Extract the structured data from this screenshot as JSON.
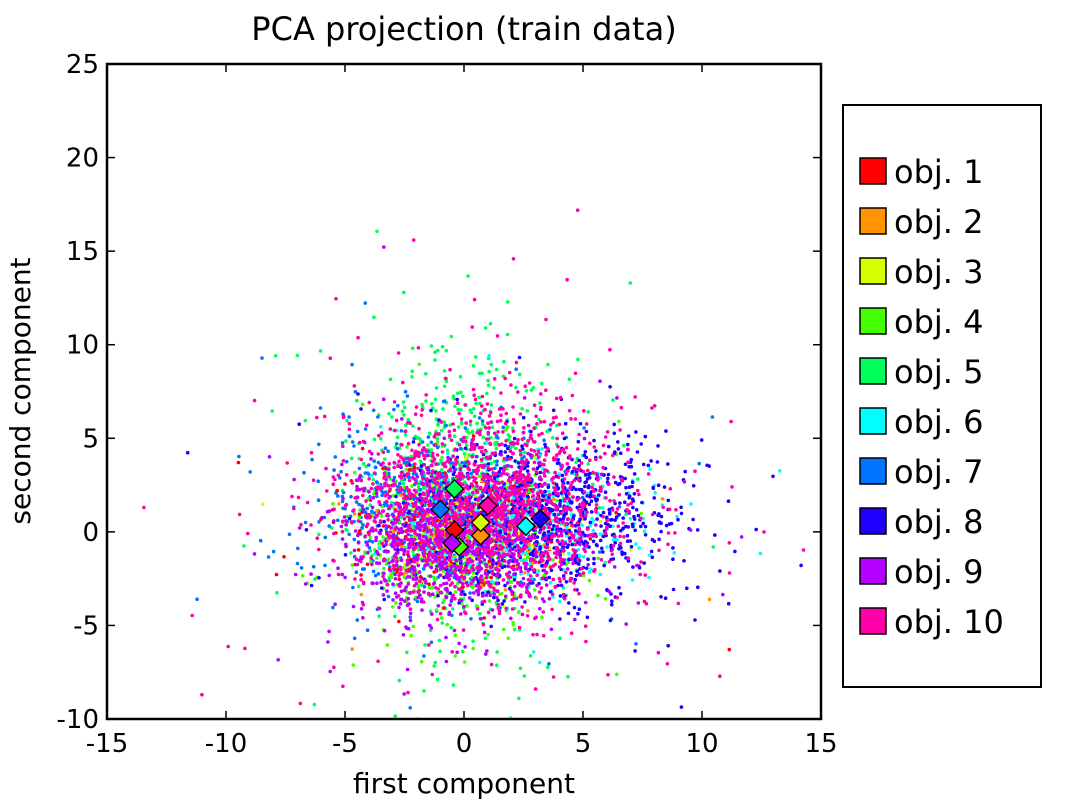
{
  "chart_data": {
    "type": "scatter",
    "title": "PCA projection (train data)",
    "xlabel": "first component",
    "ylabel": "second component",
    "xlim": [
      -15,
      15
    ],
    "ylim": [
      -10,
      25
    ],
    "x_ticks": [
      -15,
      -10,
      -5,
      0,
      5,
      10,
      15
    ],
    "y_ticks": [
      -10,
      -5,
      0,
      5,
      10,
      15,
      20,
      25
    ],
    "x_tick_labels": [
      "-15",
      "-10",
      "-5",
      "0",
      "5",
      "10",
      "15"
    ],
    "y_tick_labels": [
      "-10",
      "-5",
      "0",
      "5",
      "10",
      "15",
      "20",
      "25"
    ],
    "grid": false,
    "legend_position": "right-outside",
    "series": [
      {
        "name": "obj. 1",
        "color": "#ff0000",
        "centroid": [
          -0.4,
          0.1
        ],
        "spread": [
          2.2,
          1.4
        ],
        "count": 260
      },
      {
        "name": "obj. 2",
        "color": "#ff9400",
        "centroid": [
          0.7,
          -0.2
        ],
        "spread": [
          1.8,
          1.3
        ],
        "count": 180
      },
      {
        "name": "obj. 3",
        "color": "#d4ff00",
        "centroid": [
          0.7,
          0.5
        ],
        "spread": [
          1.8,
          1.3
        ],
        "count": 180
      },
      {
        "name": "obj. 4",
        "color": "#44ff00",
        "centroid": [
          -0.2,
          -0.8
        ],
        "spread": [
          2.0,
          2.2
        ],
        "count": 380
      },
      {
        "name": "obj. 5",
        "color": "#00ff5a",
        "centroid": [
          -0.4,
          2.3
        ],
        "spread": [
          2.2,
          3.6
        ],
        "count": 650
      },
      {
        "name": "obj. 6",
        "color": "#00ffff",
        "centroid": [
          2.6,
          0.3
        ],
        "spread": [
          2.3,
          1.6
        ],
        "count": 380
      },
      {
        "name": "obj. 7",
        "color": "#0074ff",
        "centroid": [
          -1.0,
          1.2
        ],
        "spread": [
          2.4,
          2.2
        ],
        "count": 650
      },
      {
        "name": "obj. 8",
        "color": "#1e00ff",
        "centroid": [
          3.2,
          0.7
        ],
        "spread": [
          2.8,
          2.1
        ],
        "count": 900
      },
      {
        "name": "obj. 9",
        "color": "#b400ff",
        "centroid": [
          -0.5,
          -0.6
        ],
        "spread": [
          2.3,
          1.9
        ],
        "count": 900
      },
      {
        "name": "obj. 10",
        "color": "#ff00a9",
        "centroid": [
          1.0,
          1.4
        ],
        "spread": [
          2.8,
          2.6
        ],
        "count": 1400
      }
    ]
  }
}
